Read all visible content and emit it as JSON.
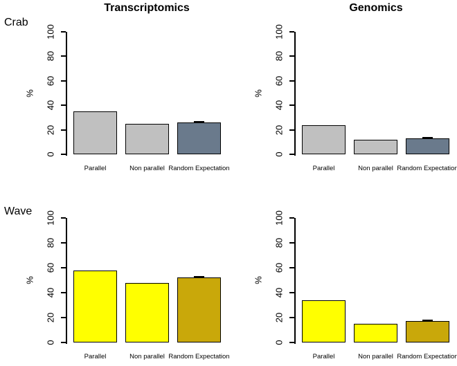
{
  "figure": {
    "col_titles": [
      "Transcriptomics",
      "Genomics"
    ],
    "row_labels": [
      "Crab",
      "Wave"
    ],
    "ylabel": "%",
    "categories": [
      "Parallel",
      "Non parallel",
      "Random Expectation"
    ],
    "ytick_labels": [
      "0",
      "20",
      "40",
      "60",
      "80",
      "100"
    ]
  },
  "colors": {
    "gray_bar": "#c0c0c0",
    "slate_bar": "#6a7a8c",
    "yellow_bar": "#ffff00",
    "gold_bar": "#c9a80a",
    "bar_border": "#000000",
    "axis": "#000000",
    "error_cap": "#000000",
    "background": "#ffffff"
  },
  "chart_data": [
    {
      "type": "bar",
      "panel": "crab-transcriptomics",
      "row": "Crab",
      "title": "Transcriptomics",
      "categories": [
        "Parallel",
        "Non parallel",
        "Random Expectation"
      ],
      "values": [
        35,
        25,
        26
      ],
      "bar_color_keys": [
        "gray_bar",
        "gray_bar",
        "slate_bar"
      ],
      "error_cap_index": 2,
      "ylabel": "%",
      "ylim": [
        0,
        100
      ],
      "yticks": [
        0,
        20,
        40,
        60,
        80,
        100
      ],
      "grid": false,
      "legend": false
    },
    {
      "type": "bar",
      "panel": "crab-genomics",
      "row": "Crab",
      "title": "Genomics",
      "categories": [
        "Parallel",
        "Non parallel",
        "Random Expectation"
      ],
      "values": [
        24,
        12,
        13
      ],
      "bar_color_keys": [
        "gray_bar",
        "gray_bar",
        "slate_bar"
      ],
      "error_cap_index": 2,
      "ylabel": "%",
      "ylim": [
        0,
        100
      ],
      "yticks": [
        0,
        20,
        40,
        60,
        80,
        100
      ],
      "grid": false,
      "legend": false
    },
    {
      "type": "bar",
      "panel": "wave-transcriptomics",
      "row": "Wave",
      "title": "Transcriptomics",
      "categories": [
        "Parallel",
        "Non parallel",
        "Random Expectation"
      ],
      "values": [
        58,
        48,
        52
      ],
      "bar_color_keys": [
        "yellow_bar",
        "yellow_bar",
        "gold_bar"
      ],
      "error_cap_index": 2,
      "ylabel": "%",
      "ylim": [
        0,
        100
      ],
      "yticks": [
        0,
        20,
        40,
        60,
        80,
        100
      ],
      "grid": false,
      "legend": false
    },
    {
      "type": "bar",
      "panel": "wave-genomics",
      "row": "Wave",
      "title": "Genomics",
      "categories": [
        "Parallel",
        "Non parallel",
        "Random Expectation"
      ],
      "values": [
        34,
        15,
        17
      ],
      "bar_color_keys": [
        "yellow_bar",
        "yellow_bar",
        "gold_bar"
      ],
      "error_cap_index": 2,
      "ylabel": "%",
      "ylim": [
        0,
        100
      ],
      "yticks": [
        0,
        20,
        40,
        60,
        80,
        100
      ],
      "grid": false,
      "legend": false
    }
  ]
}
